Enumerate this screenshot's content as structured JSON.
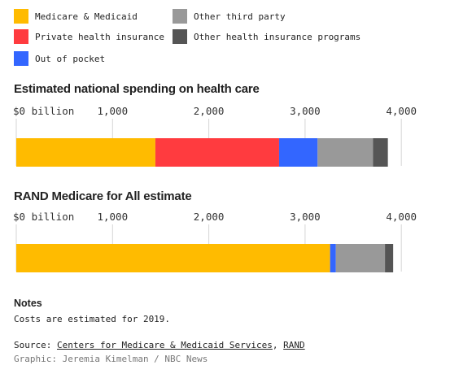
{
  "legend": [
    {
      "label": "Medicare & Medicaid",
      "color": "#ffbb00"
    },
    {
      "label": "Other third party",
      "color": "#999999"
    },
    {
      "label": "Private health insurance",
      "color": "#ff3b3f"
    },
    {
      "label": "Other health insurance programs",
      "color": "#555555"
    },
    {
      "label": "Out of pocket",
      "color": "#3366ff"
    }
  ],
  "chart_data": [
    {
      "type": "bar",
      "orientation": "horizontal",
      "stacked": true,
      "title": "Estimated national spending on health care",
      "ticks": [
        {
          "value": 0,
          "label": "$0 billion"
        },
        {
          "value": 1000,
          "label": "1,000"
        },
        {
          "value": 2000,
          "label": "2,000"
        },
        {
          "value": 3000,
          "label": "3,000"
        },
        {
          "value": 4000,
          "label": "4,000"
        }
      ],
      "xlim": [
        0,
        4000
      ],
      "grid": true,
      "series": [
        {
          "name": "Medicare & Medicaid",
          "value": 1445,
          "color": "#ffbb00"
        },
        {
          "name": "Private health insurance",
          "value": 1285,
          "color": "#ff3b3f"
        },
        {
          "name": "Out of pocket",
          "value": 400,
          "color": "#3366ff"
        },
        {
          "name": "Other third party",
          "value": 575,
          "color": "#999999"
        },
        {
          "name": "Other health insurance programs",
          "value": 155,
          "color": "#555555"
        }
      ]
    },
    {
      "type": "bar",
      "orientation": "horizontal",
      "stacked": true,
      "title": "RAND Medicare for All estimate",
      "ticks": [
        {
          "value": 0,
          "label": "$0 billion"
        },
        {
          "value": 1000,
          "label": "1,000"
        },
        {
          "value": 2000,
          "label": "2,000"
        },
        {
          "value": 3000,
          "label": "3,000"
        },
        {
          "value": 4000,
          "label": "4,000"
        }
      ],
      "xlim": [
        0,
        4000
      ],
      "grid": true,
      "series": [
        {
          "name": "Medicare & Medicaid",
          "value": 3260,
          "color": "#ffbb00"
        },
        {
          "name": "Out of pocket",
          "value": 60,
          "color": "#3366ff"
        },
        {
          "name": "Other third party",
          "value": 510,
          "color": "#999999"
        },
        {
          "name": "Other health insurance programs",
          "value": 85,
          "color": "#555555"
        }
      ]
    }
  ],
  "notes": {
    "title": "Notes",
    "text": "Costs are estimated for 2019."
  },
  "source": {
    "prefix": "Source: ",
    "link1": "Centers for Medicare & Medicaid Services",
    "separator": ", ",
    "link2": "RAND"
  },
  "credit": "Graphic: Jeremia Kimelman / NBC News"
}
